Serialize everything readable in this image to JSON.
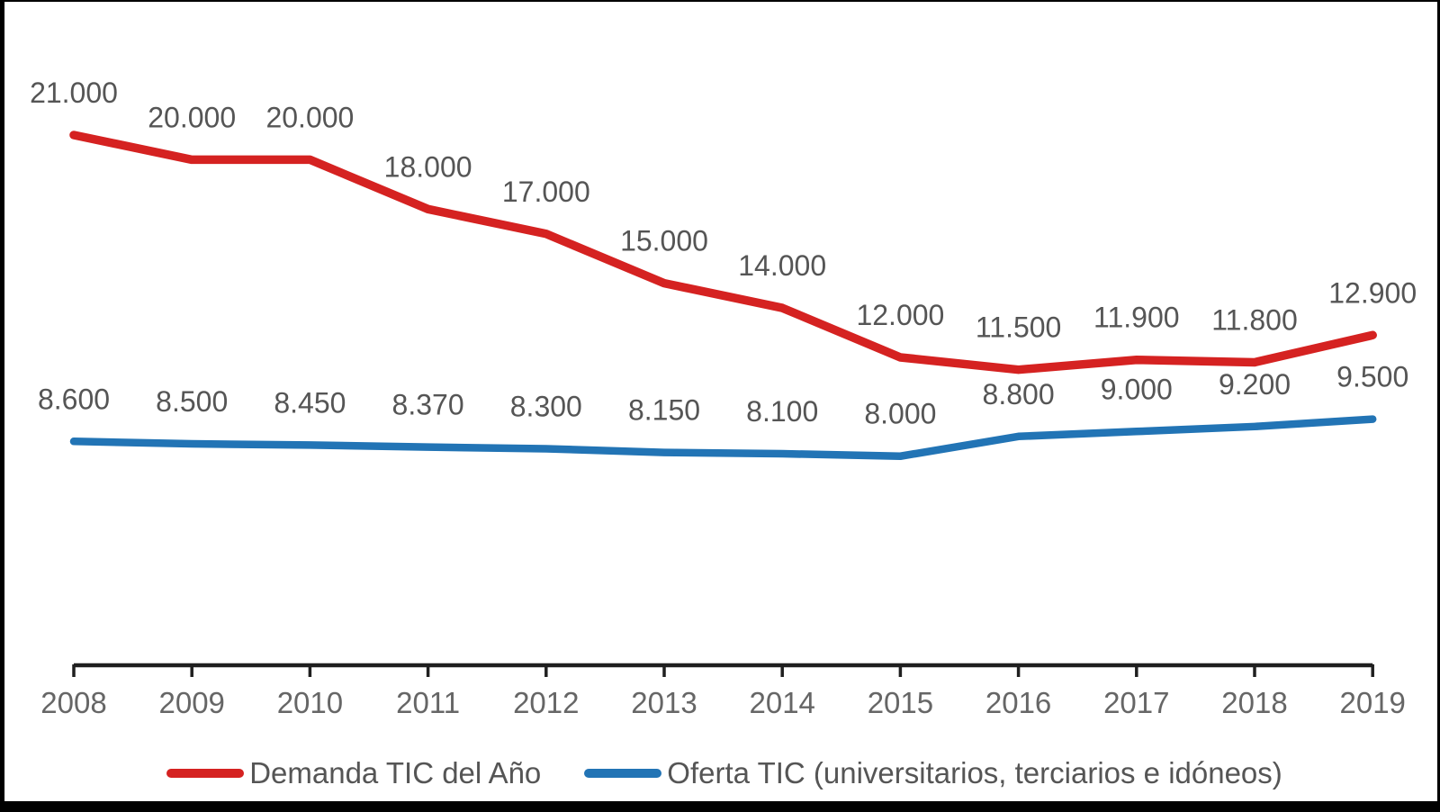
{
  "chart_data": {
    "type": "line",
    "title": "",
    "xlabel": "",
    "ylabel": "",
    "categories": [
      "2008",
      "2009",
      "2010",
      "2011",
      "2012",
      "2013",
      "2014",
      "2015",
      "2016",
      "2017",
      "2018",
      "2019"
    ],
    "series": [
      {
        "name": "Demanda TIC del Año",
        "color": "#d52221",
        "values": [
          21000,
          20000,
          20000,
          18000,
          17000,
          15000,
          14000,
          12000,
          11500,
          11900,
          11800,
          12900
        ],
        "point_labels": [
          "21.000",
          "20.000",
          "20.000",
          "18.000",
          "17.000",
          "15.000",
          "14.000",
          "12.000",
          "11.500",
          "11.900",
          "11.800",
          "12.900"
        ]
      },
      {
        "name": "Oferta TIC (universitarios, terciarios e idóneos)",
        "color": "#2274b5",
        "values": [
          8600,
          8500,
          8450,
          8370,
          8300,
          8150,
          8100,
          8000,
          8800,
          9000,
          9200,
          9500
        ],
        "point_labels": [
          "8.600",
          "8.500",
          "8.450",
          "8.370",
          "8.300",
          "8.150",
          "8.100",
          "8.000",
          "8.800",
          "9.000",
          "9.200",
          "9.500"
        ]
      }
    ],
    "ylim": [
      0,
      22000
    ],
    "grid": false,
    "legend_position": "bottom",
    "colors": {
      "axis": "#1f1f1f",
      "data_label": "#555555",
      "tick_label": "#666666",
      "background": "#ffffff",
      "frame_border": "#000000"
    }
  }
}
